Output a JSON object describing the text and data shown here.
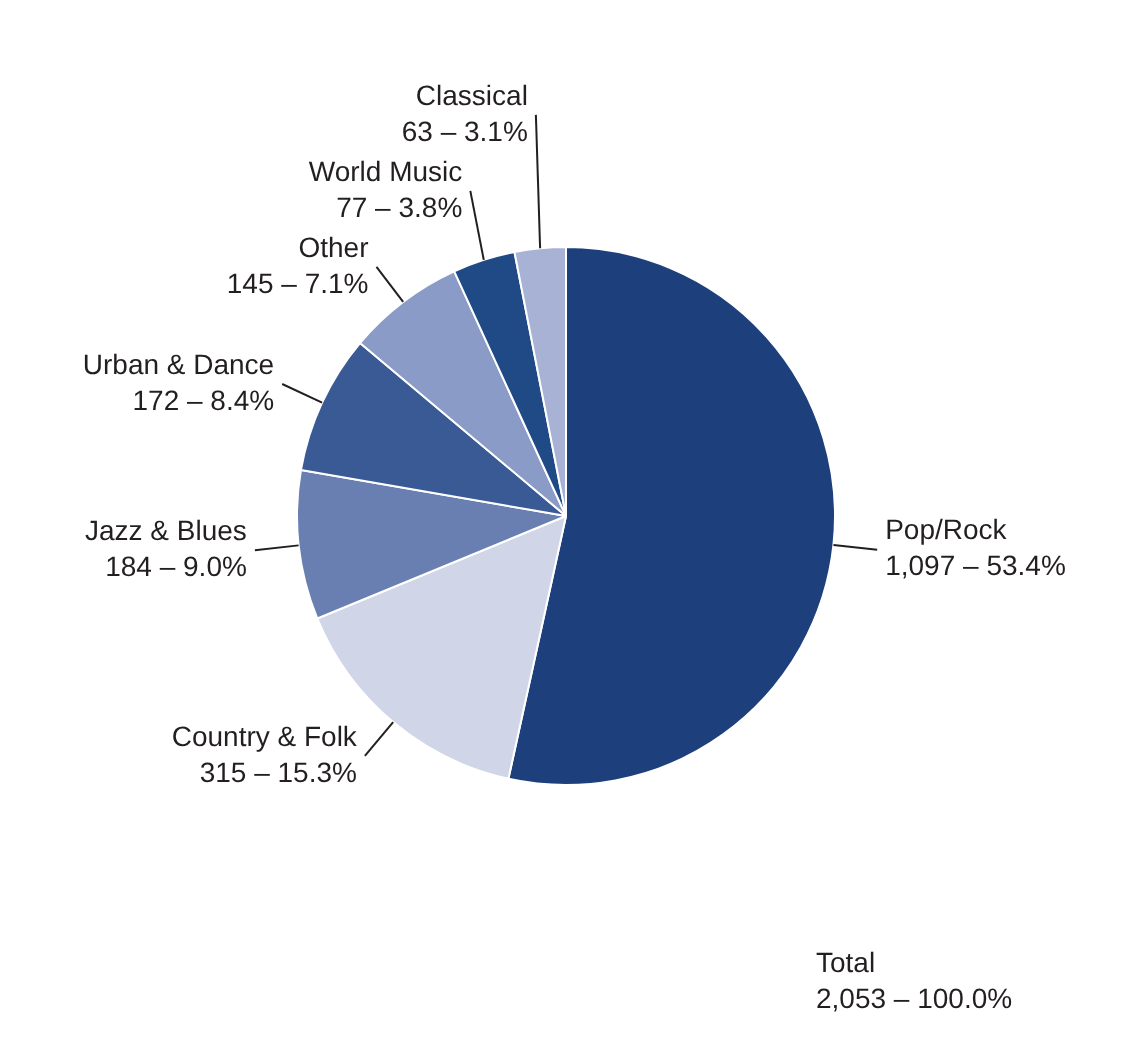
{
  "chart_data": {
    "type": "pie",
    "categories": [
      "Pop/Rock",
      "Country & Folk",
      "Jazz & Blues",
      "Urban & Dance",
      "Other",
      "World Music",
      "Classical"
    ],
    "values": [
      1097,
      315,
      184,
      172,
      145,
      77,
      63
    ],
    "value_labels": [
      "1,097 – 53.4%",
      "315 – 15.3%",
      "184 – 9.0%",
      "172 – 8.4%",
      "145 – 7.1%",
      "77 – 3.8%",
      "63 – 3.1%"
    ],
    "colors": [
      "#1d3f7c",
      "#d0d5e7",
      "#6a7fb1",
      "#395a94",
      "#8a9bc7",
      "#1f4a86",
      "#a8b2d4"
    ],
    "legend": false,
    "annotations": [
      "Total\n2,053 – 100.0%"
    ]
  }
}
